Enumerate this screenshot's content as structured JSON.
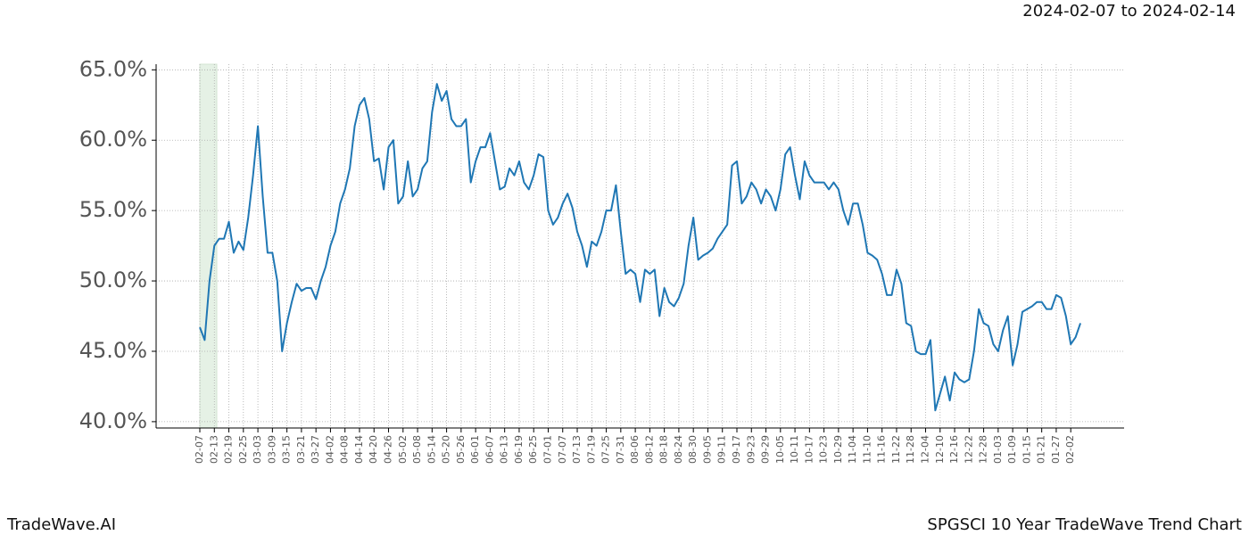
{
  "chart_data": {
    "type": "line",
    "header": "2024-02-07 to 2024-02-14",
    "footer_left": "TradeWave.AI",
    "footer_right": "SPGSCI 10 Year TradeWave Trend Chart",
    "categories": [
      "02-07",
      null,
      null,
      "02-13",
      null,
      null,
      "02-19",
      null,
      null,
      "02-25",
      null,
      null,
      "03-03",
      null,
      null,
      "03-09",
      null,
      null,
      "03-15",
      null,
      null,
      "03-21",
      null,
      null,
      "03-27",
      null,
      null,
      "04-02",
      null,
      null,
      "04-08",
      null,
      null,
      "04-14",
      null,
      null,
      "04-20",
      null,
      null,
      "04-26",
      null,
      null,
      "05-02",
      null,
      null,
      "05-08",
      null,
      null,
      "05-14",
      null,
      null,
      "05-20",
      null,
      null,
      "05-26",
      null,
      null,
      "06-01",
      null,
      null,
      "06-07",
      null,
      null,
      "06-13",
      null,
      null,
      "06-19",
      null,
      null,
      "06-25",
      null,
      null,
      "07-01",
      null,
      null,
      "07-07",
      null,
      null,
      "07-13",
      null,
      null,
      "07-19",
      null,
      null,
      "07-25",
      null,
      null,
      "07-31",
      null,
      null,
      "08-06",
      null,
      null,
      "08-12",
      null,
      null,
      "08-18",
      null,
      null,
      "08-24",
      null,
      null,
      "08-30",
      null,
      null,
      "09-05",
      null,
      null,
      "09-11",
      null,
      null,
      "09-17",
      null,
      null,
      "09-23",
      null,
      null,
      "09-29",
      null,
      null,
      "10-05",
      null,
      null,
      "10-11",
      null,
      null,
      "10-17",
      null,
      null,
      "10-23",
      null,
      null,
      "10-29",
      null,
      null,
      "11-04",
      null,
      null,
      "11-10",
      null,
      null,
      "11-16",
      null,
      null,
      "11-22",
      null,
      null,
      "11-28",
      null,
      null,
      "12-04",
      null,
      null,
      "12-10",
      null,
      null,
      "12-16",
      null,
      null,
      "12-22",
      null,
      null,
      "12-28",
      null,
      null,
      "01-03",
      null,
      null,
      "01-09",
      null,
      null,
      "01-15",
      null,
      null,
      "01-21",
      null,
      null,
      "01-27",
      null,
      null,
      "02-02",
      null,
      null
    ],
    "series": [
      {
        "color": "#1f77b4",
        "values": [
          46.7,
          45.8,
          50.0,
          52.5,
          53.0,
          53.0,
          54.2,
          52.0,
          52.8,
          52.2,
          54.5,
          57.5,
          61.0,
          56.0,
          52.0,
          52.0,
          50.0,
          45.0,
          47.0,
          48.5,
          49.8,
          49.3,
          49.5,
          49.5,
          48.7,
          50.0,
          51.0,
          52.5,
          53.5,
          55.5,
          56.5,
          58.0,
          61.0,
          62.5,
          63.0,
          61.5,
          58.5,
          58.7,
          56.5,
          59.5,
          60.0,
          55.5,
          56.0,
          58.5,
          56.0,
          56.5,
          58.0,
          58.5,
          62.0,
          64.0,
          62.8,
          63.5,
          61.5,
          61.0,
          61.0,
          61.5,
          57.0,
          58.5,
          59.5,
          59.5,
          60.5,
          58.5,
          56.5,
          56.7,
          58.0,
          57.5,
          58.5,
          57.0,
          56.5,
          57.5,
          59.0,
          58.8,
          55.0,
          54.0,
          54.5,
          55.5,
          56.2,
          55.2,
          53.5,
          52.5,
          51.0,
          52.8,
          52.5,
          53.5,
          55.0,
          55.0,
          56.8,
          53.5,
          50.5,
          50.8,
          50.5,
          48.5,
          50.8,
          50.5,
          50.8,
          47.5,
          49.5,
          48.5,
          48.2,
          48.8,
          49.8,
          52.5,
          54.5,
          51.5,
          51.8,
          52.0,
          52.3,
          53.0,
          53.5,
          54.0,
          58.2,
          58.5,
          55.5,
          56.0,
          57.0,
          56.5,
          55.5,
          56.5,
          56.0,
          55.0,
          56.5,
          59.0,
          59.5,
          57.5,
          55.8,
          58.5,
          57.5,
          57.0,
          57.0,
          57.0,
          56.5,
          57.0,
          56.5,
          55.0,
          54.0,
          55.5,
          55.5,
          54.0,
          52.0,
          51.8,
          51.5,
          50.5,
          49.0,
          49.0,
          50.8,
          49.8,
          47.0,
          46.8,
          45.0,
          44.8,
          44.8,
          45.8,
          40.8,
          42.0,
          43.2,
          41.5,
          43.5,
          43.0,
          42.8,
          43.0,
          45.0,
          48.0,
          47.0,
          46.8,
          45.5,
          45.0,
          46.5,
          47.5,
          44.0,
          45.5,
          47.8,
          48.0,
          48.2,
          48.5,
          48.5,
          48.0,
          48.0,
          49.0,
          48.8,
          47.5,
          45.5,
          46.0,
          47.0
        ]
      }
    ],
    "ylim": [
      39.55,
      65.4
    ],
    "yticks": [
      {
        "value": 40,
        "label": "40.0%"
      },
      {
        "value": 45,
        "label": "45.0%"
      },
      {
        "value": 50,
        "label": "50.0%"
      },
      {
        "value": 55,
        "label": "55.0%"
      },
      {
        "value": 60,
        "label": "60.0%"
      },
      {
        "value": 65,
        "label": "65.0%"
      }
    ],
    "grid": true
  }
}
